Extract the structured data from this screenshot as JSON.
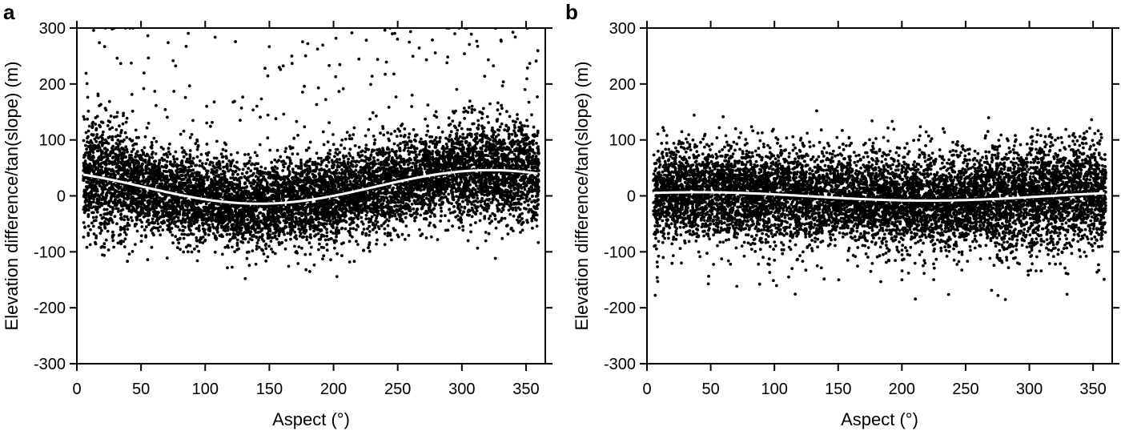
{
  "chart_data": [
    {
      "type": "scatter",
      "panel_label": "a",
      "xlabel": "Aspect (°)",
      "ylabel": "Elevation difference/tan(slope) (m)",
      "xlim": [
        0,
        365
      ],
      "ylim": [
        -300,
        300
      ],
      "xticks": [
        0,
        50,
        100,
        150,
        200,
        250,
        300,
        350
      ],
      "yticks": [
        -300,
        -200,
        -100,
        0,
        100,
        200,
        300
      ],
      "grid": false,
      "series": [
        {
          "kind": "scatter",
          "color": "#000000",
          "distribution": "dense point cloud, about -100 to 150 m, outliers to ±300 m",
          "x_range": [
            5,
            360
          ]
        },
        {
          "kind": "fitted-curve",
          "color": "#ffffff",
          "model": "a*cos(aspect - b) + c",
          "a": 30,
          "b": 322,
          "c": 16,
          "x_range": [
            5,
            360
          ]
        }
      ]
    },
    {
      "type": "scatter",
      "panel_label": "b",
      "xlabel": "Aspect (°)",
      "ylabel": "Elevation difference/tan(slope) (m)",
      "xlim": [
        0,
        365
      ],
      "ylim": [
        -300,
        300
      ],
      "xticks": [
        0,
        50,
        100,
        150,
        200,
        250,
        300,
        350
      ],
      "yticks": [
        -300,
        -200,
        -100,
        0,
        100,
        200,
        300
      ],
      "grid": false,
      "series": [
        {
          "kind": "scatter",
          "color": "#000000",
          "distribution": "dense point cloud, about -130 to 120 m, outliers to ±200 m",
          "x_range": [
            5,
            360
          ]
        },
        {
          "kind": "fitted-curve",
          "color": "#ffffff",
          "model": "a*cos(aspect - b) + c",
          "a": 7.5,
          "b": 40,
          "c": -1,
          "x_range": [
            5,
            360
          ]
        }
      ]
    }
  ]
}
